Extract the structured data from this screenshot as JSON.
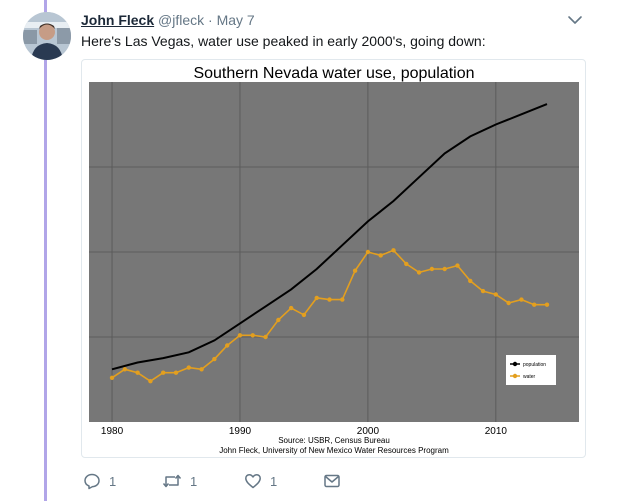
{
  "tweet": {
    "author_name": "John Fleck",
    "handle": "@jfleck",
    "separator": "·",
    "date": "May 7",
    "text": "Here's Las Vegas, water use peaked in early 2000's, going down:",
    "icons": {
      "avatar": "avatar",
      "caret": "chevron-down-icon",
      "reply": "reply-icon",
      "retweet": "retweet-icon",
      "like": "heart-icon",
      "dm": "envelope-icon"
    },
    "colors": {
      "thread": "#b1a5e8",
      "text": "#14171a",
      "muted": "#657786"
    }
  },
  "actions": {
    "reply_count": "1",
    "retweet_count": "1",
    "like_count": "1"
  },
  "chart_data": {
    "type": "line",
    "title": "Southern Nevada water use, population",
    "xlim": [
      1978.2,
      2016.5
    ],
    "ylim": [
      0,
      1
    ],
    "x_ticks": [
      1980,
      1990,
      2000,
      2010
    ],
    "y_gridlines": [
      0.25,
      0.5,
      0.75
    ],
    "grid": true,
    "legend_position": "bottom-right",
    "source": "Source: USBR, Census Bureau",
    "credit": "John Fleck, University of New Mexico Water Resources Program",
    "plot_background": "#777777",
    "series": [
      {
        "name": "population",
        "color": "#000000",
        "markers": false,
        "x": [
          1980,
          1982,
          1984,
          1986,
          1988,
          1990,
          1992,
          1994,
          1996,
          1998,
          2000,
          2002,
          2004,
          2006,
          2008,
          2010,
          2012,
          2014
        ],
        "y": [
          0.155,
          0.175,
          0.188,
          0.205,
          0.24,
          0.29,
          0.34,
          0.39,
          0.45,
          0.52,
          0.59,
          0.65,
          0.72,
          0.79,
          0.84,
          0.875,
          0.905,
          0.935
        ]
      },
      {
        "name": "water",
        "color": "#e39f1f",
        "markers": true,
        "x": [
          1980,
          1981,
          1982,
          1983,
          1984,
          1985,
          1986,
          1987,
          1988,
          1989,
          1990,
          1991,
          1992,
          1993,
          1994,
          1995,
          1996,
          1997,
          1998,
          1999,
          2000,
          2001,
          2002,
          2003,
          2004,
          2005,
          2006,
          2007,
          2008,
          2009,
          2010,
          2011,
          2012,
          2013,
          2014
        ],
        "y": [
          0.13,
          0.155,
          0.145,
          0.12,
          0.145,
          0.145,
          0.16,
          0.155,
          0.185,
          0.225,
          0.255,
          0.255,
          0.25,
          0.3,
          0.335,
          0.315,
          0.365,
          0.36,
          0.36,
          0.445,
          0.5,
          0.49,
          0.505,
          0.465,
          0.44,
          0.45,
          0.45,
          0.46,
          0.415,
          0.385,
          0.375,
          0.35,
          0.36,
          0.345,
          0.345
        ]
      }
    ]
  }
}
